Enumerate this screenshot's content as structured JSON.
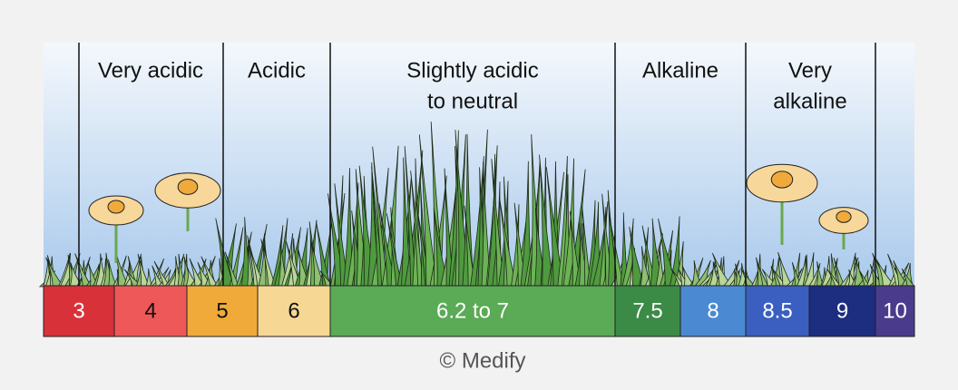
{
  "zones": [
    {
      "lines": [
        "Very acidic"
      ]
    },
    {
      "lines": [
        "Acidic"
      ]
    },
    {
      "lines": [
        "Slightly acidic",
        "to neutral"
      ]
    },
    {
      "lines": [
        "Alkaline"
      ]
    },
    {
      "lines": [
        "Very",
        "alkaline"
      ]
    }
  ],
  "scale": [
    "3",
    "4",
    "5",
    "6",
    "6.2 to 7",
    "7.5",
    "8",
    "8.5",
    "9",
    "10"
  ],
  "credit": "© Medify"
}
